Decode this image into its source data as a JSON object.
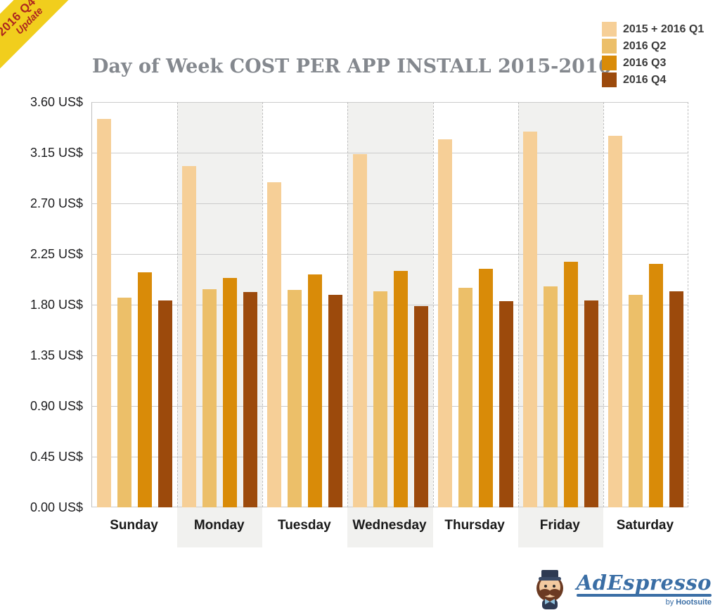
{
  "ribbon": {
    "line1": "2016 Q4",
    "line2": "Update"
  },
  "title": "Day of Week COST PER APP INSTALL 2015-2016",
  "colors": {
    "ribbon_bg": "#F1CE1D",
    "ribbon_text": "#AE271E",
    "title_text": "#84888E",
    "band": "#F1F1EF",
    "grid": "#CBCBCB",
    "separator": "#BFBFBF",
    "logo_blue": "#3A6EA5"
  },
  "chart_data": {
    "type": "bar",
    "title": "Day of Week COST PER APP INSTALL 2015-2016",
    "categories": [
      "Sunday",
      "Monday",
      "Tuesday",
      "Wednesday",
      "Thursday",
      "Friday",
      "Saturday"
    ],
    "series": [
      {
        "name": "2015 + 2016 Q1",
        "color": "#F6CF97",
        "values": [
          3.45,
          3.03,
          2.89,
          3.14,
          3.27,
          3.34,
          3.3
        ]
      },
      {
        "name": "2016 Q2",
        "color": "#ECBF69",
        "values": [
          1.86,
          1.94,
          1.93,
          1.92,
          1.95,
          1.96,
          1.89
        ]
      },
      {
        "name": "2016 Q3",
        "color": "#D98B08",
        "values": [
          2.09,
          2.04,
          2.07,
          2.1,
          2.12,
          2.18,
          2.16
        ]
      },
      {
        "name": "2016 Q4",
        "color": "#9C4A0C",
        "values": [
          1.84,
          1.91,
          1.89,
          1.79,
          1.83,
          1.84,
          1.92
        ]
      }
    ],
    "ylim": [
      0,
      3.6
    ],
    "ytick_step": 0.45,
    "ytick_labels": [
      "0.00 US$",
      "0.45 US$",
      "0.90 US$",
      "1.35 US$",
      "1.80 US$",
      "2.25 US$",
      "2.70 US$",
      "3.15 US$",
      "3.60 US$"
    ],
    "grid": true,
    "legend_position": "top-right",
    "shaded_category_indices": [
      1,
      3,
      5
    ]
  },
  "logo": {
    "brand": "AdEspresso",
    "byline_prefix": "by",
    "byline_name": "Hootsuite"
  }
}
